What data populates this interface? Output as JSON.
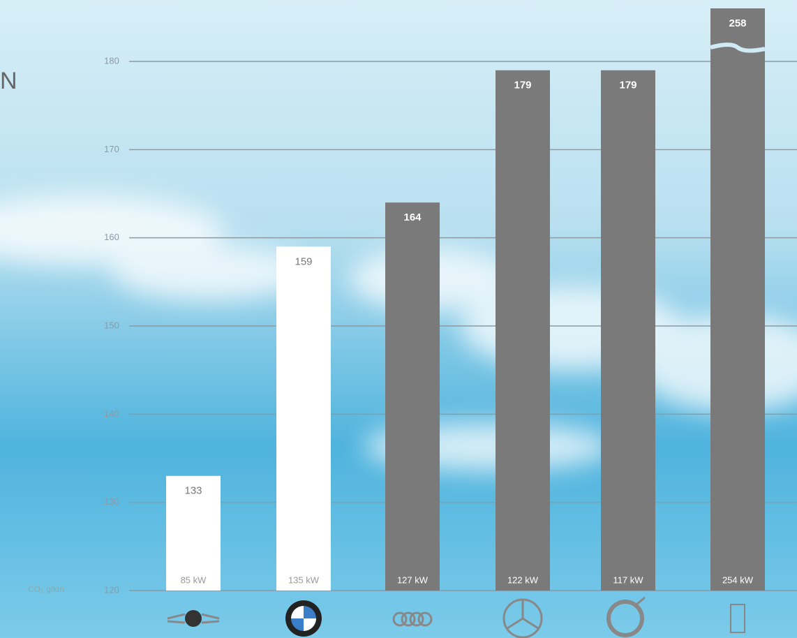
{
  "chart_data": {
    "type": "bar",
    "title": "N",
    "y_label": "CO₂ g/km",
    "categories": [
      null,
      null,
      null,
      null,
      null,
      null
    ],
    "values": [
      133,
      159,
      164,
      179,
      179,
      258
    ],
    "colors": [
      "#ffffff",
      "#ffffff",
      "#7a7a7a",
      "#7a7a7a",
      "#7a7a7a",
      "#7a7a7a"
    ],
    "power_labels": [
      "85 kW",
      "135 kW",
      "127 kW",
      "122 kW",
      "117 kW",
      "254 kW"
    ],
    "ylim": [
      120,
      180
    ],
    "yticks": [
      120,
      130,
      140,
      150,
      160,
      170,
      180
    ],
    "grid": true,
    "axis_break": true
  }
}
